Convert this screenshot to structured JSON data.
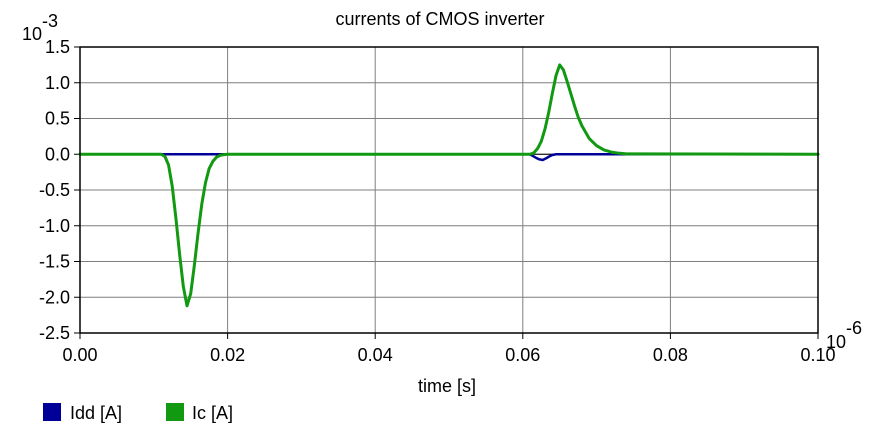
{
  "chart_data": {
    "type": "line",
    "title": "currents of CMOS inverter",
    "xlabel": "time [s]",
    "ylabel": "",
    "x_multiplier_label": "10",
    "x_multiplier_exp": "-6",
    "y_multiplier_label": "10",
    "y_multiplier_exp": "-3",
    "xlim": [
      0.0,
      0.1
    ],
    "ylim": [
      -2.5,
      1.5
    ],
    "x_ticks": [
      0.0,
      0.02,
      0.04,
      0.06,
      0.08,
      0.1
    ],
    "x_tick_labels": [
      "0.00",
      "0.02",
      "0.04",
      "0.06",
      "0.08",
      "0.10"
    ],
    "y_ticks": [
      1.5,
      1.0,
      0.5,
      0.0,
      -0.5,
      -1.0,
      -1.5,
      -2.0,
      -2.5
    ],
    "y_tick_labels": [
      "1.5",
      "1.0",
      "0.5",
      "0.0",
      "-0.5",
      "-1.0",
      "-1.5",
      "-2.0",
      "-2.5"
    ],
    "grid": true,
    "legend_position": "bottom-left",
    "series": [
      {
        "name": "Idd [A]",
        "color": "#000099",
        "x": [
          0.0,
          0.0609,
          0.0613,
          0.0618,
          0.0622,
          0.0627,
          0.0631,
          0.0636,
          0.064,
          0.0645,
          0.065,
          0.075,
          0.1
        ],
        "y": [
          0.0,
          0.0,
          -0.02,
          -0.05,
          -0.07,
          -0.08,
          -0.06,
          -0.03,
          -0.01,
          0.0,
          0.0,
          0.0,
          0.0
        ]
      },
      {
        "name": "Ic [A]",
        "color": "#119911",
        "x": [
          0.0,
          0.011,
          0.0115,
          0.012,
          0.0125,
          0.013,
          0.0135,
          0.014,
          0.0145,
          0.015,
          0.0155,
          0.016,
          0.0165,
          0.017,
          0.0175,
          0.018,
          0.0185,
          0.019,
          0.0195,
          0.02,
          0.061,
          0.0615,
          0.062,
          0.0625,
          0.063,
          0.0635,
          0.064,
          0.0645,
          0.065,
          0.0655,
          0.066,
          0.0665,
          0.067,
          0.0675,
          0.068,
          0.069,
          0.07,
          0.071,
          0.072,
          0.073,
          0.074,
          0.1
        ],
        "y": [
          0.0,
          0.0,
          -0.03,
          -0.15,
          -0.45,
          -0.9,
          -1.4,
          -1.85,
          -2.12,
          -1.95,
          -1.55,
          -1.1,
          -0.7,
          -0.4,
          -0.2,
          -0.1,
          -0.04,
          -0.015,
          -0.005,
          0.0,
          0.0,
          0.02,
          0.08,
          0.18,
          0.35,
          0.58,
          0.85,
          1.1,
          1.25,
          1.18,
          1.02,
          0.85,
          0.68,
          0.52,
          0.4,
          0.22,
          0.12,
          0.06,
          0.03,
          0.015,
          0.005,
          0.0
        ]
      }
    ]
  }
}
